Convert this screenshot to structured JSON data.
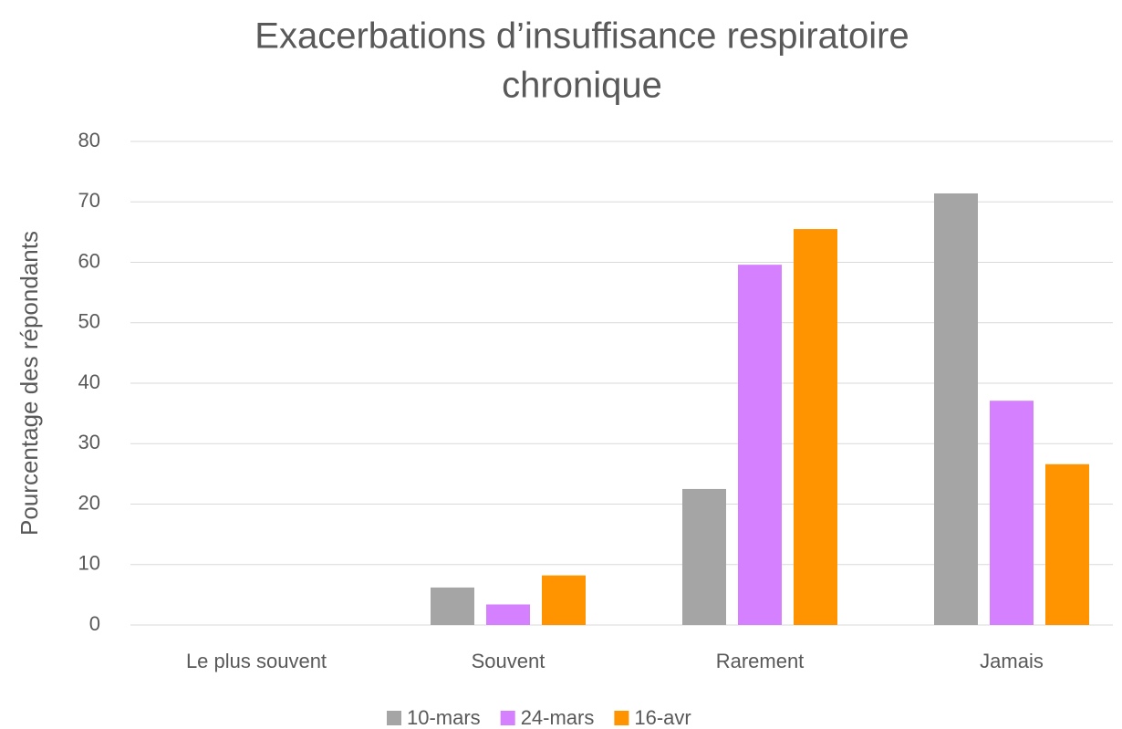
{
  "chart_data": {
    "type": "bar",
    "title": [
      "Exacerbations d’insuffisance respiratoire",
      "chronique"
    ],
    "y_label": "Pourcentage des répondants",
    "categories": [
      "Le plus souvent",
      "Souvent",
      "Rarement",
      "Jamais"
    ],
    "series": [
      {
        "name": "10-mars",
        "color": "#a5a5a5",
        "values": [
          0,
          6.2,
          22.5,
          71.4
        ]
      },
      {
        "name": "24-mars",
        "color": "#d580ff",
        "values": [
          0,
          3.4,
          59.6,
          37.1
        ]
      },
      {
        "name": "16-avr",
        "color": "#ff9400",
        "values": [
          0,
          8.2,
          65.5,
          26.6
        ]
      }
    ],
    "ylim": [
      0,
      80
    ],
    "yticks": [
      0,
      10,
      20,
      30,
      40,
      50,
      60,
      70,
      80
    ],
    "grid": true,
    "legend": "bottom"
  }
}
